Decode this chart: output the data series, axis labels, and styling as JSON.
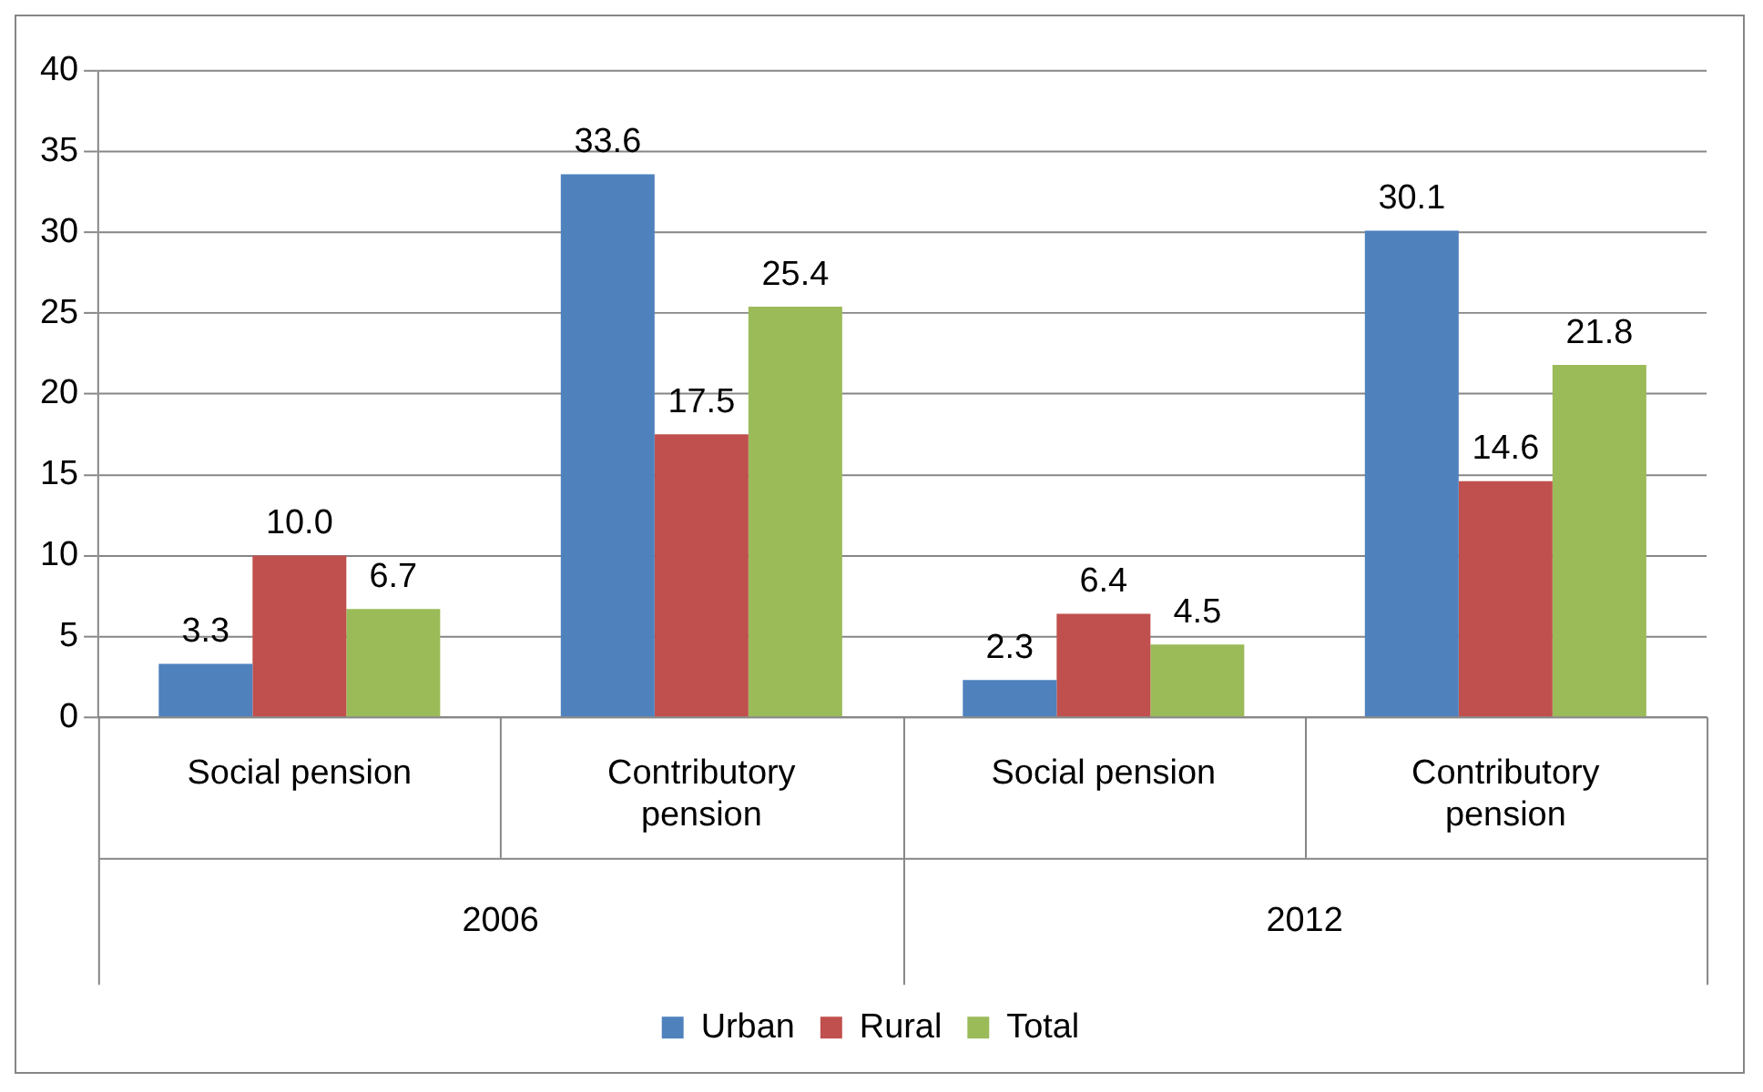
{
  "chart_data": {
    "type": "bar",
    "categories": [
      "Social pension",
      "Contributory pension",
      "Social pension",
      "Contributory pension"
    ],
    "annotations": [
      "2006",
      "2012"
    ],
    "series": [
      {
        "name": "Urban",
        "color": "#4f81bd",
        "values": [
          3.3,
          33.6,
          2.3,
          30.1
        ],
        "value_labels": [
          "3.3",
          "33.6",
          "2.3",
          "30.1"
        ]
      },
      {
        "name": "Rural",
        "color": "#c0504d",
        "values": [
          10.0,
          17.5,
          6.4,
          14.6
        ],
        "value_labels": [
          "10.0",
          "17.5",
          "6.4",
          "14.6"
        ]
      },
      {
        "name": "Total",
        "color": "#9bbb59",
        "values": [
          6.7,
          25.4,
          4.5,
          21.8
        ],
        "value_labels": [
          "6.7",
          "25.4",
          "4.5",
          "21.8"
        ]
      }
    ],
    "ylim": [
      0,
      40
    ],
    "yticks": [
      0,
      5,
      10,
      15,
      20,
      25,
      30,
      35,
      40
    ],
    "grid": "y",
    "legend": "bottom"
  }
}
